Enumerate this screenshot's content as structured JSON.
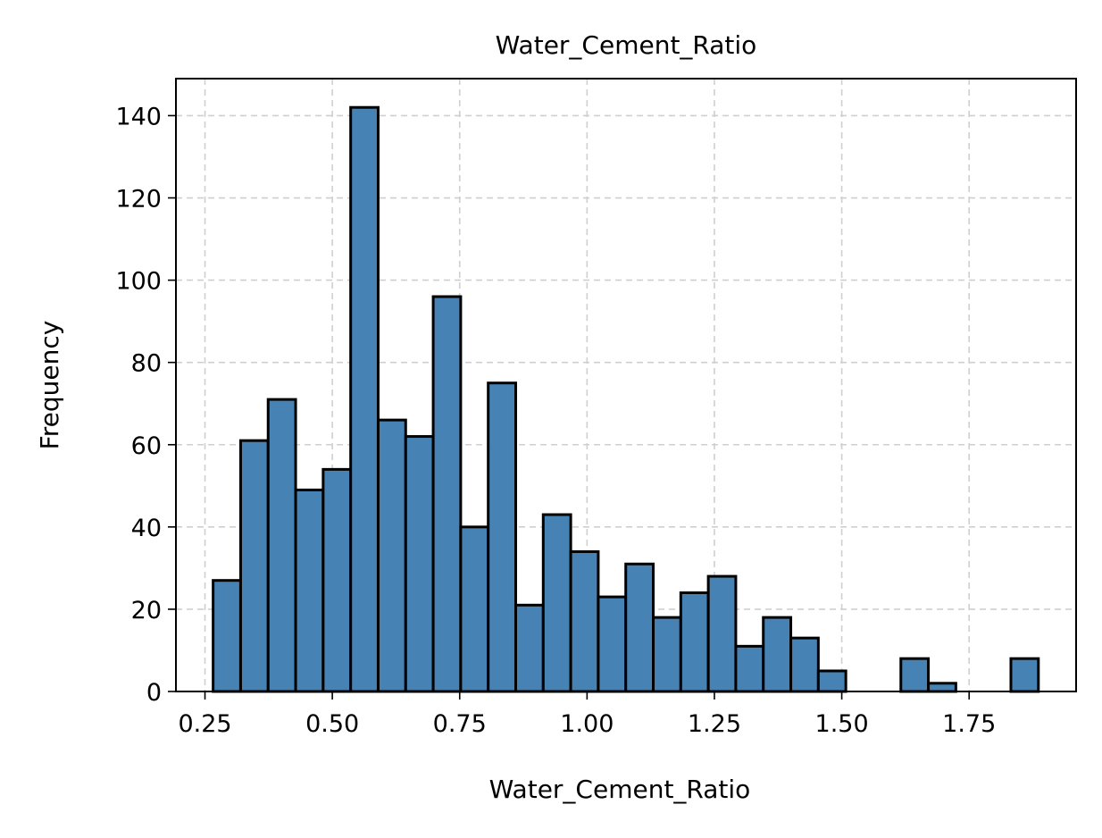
{
  "chart_data": {
    "type": "bar",
    "title": "Water_Cement_Ratio",
    "xlabel": "Water_Cement_Ratio",
    "ylabel": "Frequency",
    "xlim": [
      0.193,
      1.96
    ],
    "ylim": [
      0,
      149
    ],
    "xticks": [
      "0.25",
      "0.50",
      "0.75",
      "1.00",
      "1.25",
      "1.50",
      "1.75"
    ],
    "xtick_values": [
      0.25,
      0.5,
      0.75,
      1.0,
      1.25,
      1.5,
      1.75
    ],
    "yticks": [
      "0",
      "20",
      "40",
      "60",
      "80",
      "100",
      "120",
      "140"
    ],
    "ytick_values": [
      0,
      20,
      40,
      60,
      80,
      100,
      120,
      140
    ],
    "grid": true,
    "bar_color": "#4682b4",
    "edge_color": "#000000",
    "bin_start": 0.266,
    "bin_width": 0.054,
    "values": [
      27,
      61,
      71,
      49,
      54,
      142,
      66,
      62,
      96,
      40,
      75,
      21,
      43,
      34,
      23,
      31,
      18,
      24,
      28,
      11,
      18,
      13,
      5,
      0,
      0,
      8,
      2,
      0,
      0,
      8
    ]
  }
}
